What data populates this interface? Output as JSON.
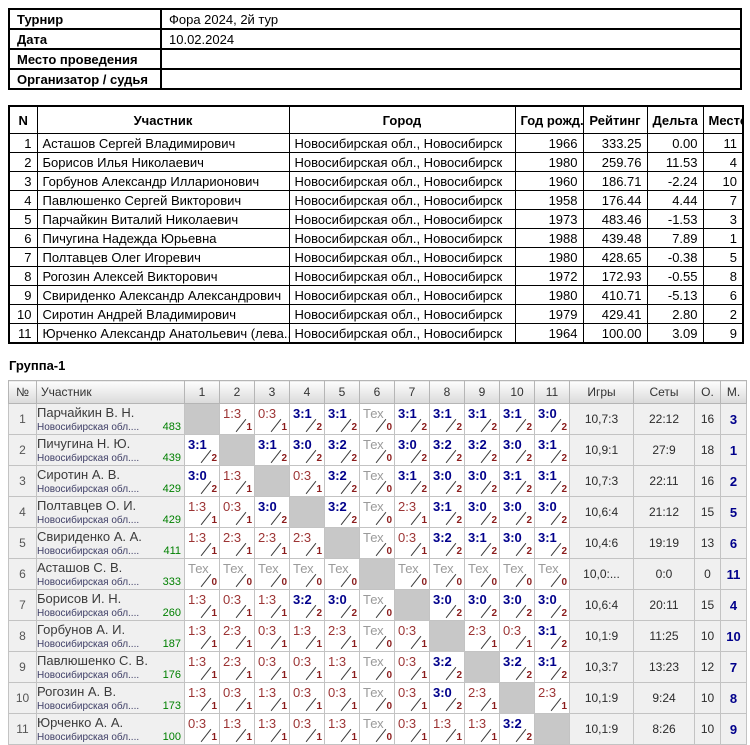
{
  "info_table": {
    "rows": [
      {
        "label": "Турнир",
        "value": "Фора 2024, 2й тур"
      },
      {
        "label": "Дата",
        "value": "10.02.2024"
      },
      {
        "label": "Место проведения",
        "value": ""
      },
      {
        "label": "Организатор / судья",
        "value": ""
      }
    ]
  },
  "participants_table": {
    "headers": [
      "N",
      "Участник",
      "Город",
      "Год рожд.",
      "Рейтинг",
      "Дельта",
      "Место"
    ],
    "rows": [
      [
        "1",
        "Асташов Сергей Владимирович",
        "Новосибирская обл., Новосибирск",
        "1966",
        "333.25",
        "0.00",
        "11"
      ],
      [
        "2",
        "Борисов Илья Николаевич",
        "Новосибирская обл., Новосибирск",
        "1980",
        "259.76",
        "11.53",
        "4"
      ],
      [
        "3",
        "Горбунов Александр Илларионович",
        "Новосибирская обл., Новосибирск",
        "1960",
        "186.71",
        "-2.24",
        "10"
      ],
      [
        "4",
        "Павлюшенко Сергей Викторович",
        "Новосибирская обл., Новосибирск",
        "1958",
        "176.44",
        "4.44",
        "7"
      ],
      [
        "5",
        "Парчайкин Виталий Николаевич",
        "Новосибирская обл., Новосибирск",
        "1973",
        "483.46",
        "-1.53",
        "3"
      ],
      [
        "6",
        "Пичугина Надежда Юрьевна",
        "Новосибирская обл., Новосибирск",
        "1988",
        "439.48",
        "7.89",
        "1"
      ],
      [
        "7",
        "Полтавцев Олег Игоревич",
        "Новосибирская обл., Новосибирск",
        "1980",
        "428.65",
        "-0.38",
        "5"
      ],
      [
        "8",
        "Рогозин Алексей Викторович",
        "Новосибирская обл., Новосибирск",
        "1972",
        "172.93",
        "-0.55",
        "8"
      ],
      [
        "9",
        "Свириденко Александр Александрович",
        "Новосибирская обл., Новосибирск",
        "1980",
        "410.71",
        "-5.13",
        "6"
      ],
      [
        "10",
        "Сиротин Андрей Владимирович",
        "Новосибирская обл., Новосибирск",
        "1979",
        "429.41",
        "2.80",
        "2"
      ],
      [
        "11",
        "Юрченко Александр Анатольевич (лева...",
        "Новосибирская обл., Новосибирск",
        "1964",
        "100.00",
        "3.09",
        "9"
      ]
    ]
  },
  "group": {
    "title": "Группа-1",
    "headers": [
      "№",
      "Участник",
      "1",
      "2",
      "3",
      "4",
      "5",
      "6",
      "7",
      "8",
      "9",
      "10",
      "11",
      "Игры",
      "Сеты",
      "О.",
      "М."
    ],
    "rows": [
      {
        "num": "1",
        "name": "Парчайкин В. Н.",
        "region": "Новосибирская обл....",
        "rating": "483",
        "cells": [
          {
            "t": "d"
          },
          {
            "t": "l",
            "s": "1:3",
            "p": "1"
          },
          {
            "t": "l",
            "s": "0:3",
            "p": "1"
          },
          {
            "t": "w",
            "s": "3:1",
            "p": "2"
          },
          {
            "t": "w",
            "s": "3:1",
            "p": "2"
          },
          {
            "t": "x",
            "s": "Тех",
            "p": "0"
          },
          {
            "t": "w",
            "s": "3:1",
            "p": "2"
          },
          {
            "t": "w",
            "s": "3:1",
            "p": "2"
          },
          {
            "t": "w",
            "s": "3:1",
            "p": "2"
          },
          {
            "t": "w",
            "s": "3:1",
            "p": "2"
          },
          {
            "t": "w",
            "s": "3:0",
            "p": "2"
          }
        ],
        "games": "10,7:3",
        "sets": "22:12",
        "o": "16",
        "m": "3"
      },
      {
        "num": "2",
        "name": "Пичугина Н. Ю.",
        "region": "Новосибирская обл....",
        "rating": "439",
        "cells": [
          {
            "t": "w",
            "s": "3:1",
            "p": "2"
          },
          {
            "t": "d"
          },
          {
            "t": "w",
            "s": "3:1",
            "p": "2"
          },
          {
            "t": "w",
            "s": "3:0",
            "p": "2"
          },
          {
            "t": "w",
            "s": "3:2",
            "p": "2"
          },
          {
            "t": "x",
            "s": "Тех",
            "p": "0"
          },
          {
            "t": "w",
            "s": "3:0",
            "p": "2"
          },
          {
            "t": "w",
            "s": "3:2",
            "p": "2"
          },
          {
            "t": "w",
            "s": "3:2",
            "p": "2"
          },
          {
            "t": "w",
            "s": "3:0",
            "p": "2"
          },
          {
            "t": "w",
            "s": "3:1",
            "p": "2"
          }
        ],
        "games": "10,9:1",
        "sets": "27:9",
        "o": "18",
        "m": "1"
      },
      {
        "num": "3",
        "name": "Сиротин А. В.",
        "region": "Новосибирская обл....",
        "rating": "429",
        "cells": [
          {
            "t": "w",
            "s": "3:0",
            "p": "2"
          },
          {
            "t": "l",
            "s": "1:3",
            "p": "1"
          },
          {
            "t": "d"
          },
          {
            "t": "l",
            "s": "0:3",
            "p": "1"
          },
          {
            "t": "w",
            "s": "3:2",
            "p": "2"
          },
          {
            "t": "x",
            "s": "Тех",
            "p": "0"
          },
          {
            "t": "w",
            "s": "3:1",
            "p": "2"
          },
          {
            "t": "w",
            "s": "3:0",
            "p": "2"
          },
          {
            "t": "w",
            "s": "3:0",
            "p": "2"
          },
          {
            "t": "w",
            "s": "3:1",
            "p": "2"
          },
          {
            "t": "w",
            "s": "3:1",
            "p": "2"
          }
        ],
        "games": "10,7:3",
        "sets": "22:11",
        "o": "16",
        "m": "2"
      },
      {
        "num": "4",
        "name": "Полтавцев О. И.",
        "region": "Новосибирская обл....",
        "rating": "429",
        "cells": [
          {
            "t": "l",
            "s": "1:3",
            "p": "1"
          },
          {
            "t": "l",
            "s": "0:3",
            "p": "1"
          },
          {
            "t": "w",
            "s": "3:0",
            "p": "2"
          },
          {
            "t": "d"
          },
          {
            "t": "w",
            "s": "3:2",
            "p": "2"
          },
          {
            "t": "x",
            "s": "Тех",
            "p": "0"
          },
          {
            "t": "l",
            "s": "2:3",
            "p": "1"
          },
          {
            "t": "w",
            "s": "3:1",
            "p": "2"
          },
          {
            "t": "w",
            "s": "3:0",
            "p": "2"
          },
          {
            "t": "w",
            "s": "3:0",
            "p": "2"
          },
          {
            "t": "w",
            "s": "3:0",
            "p": "2"
          }
        ],
        "games": "10,6:4",
        "sets": "21:12",
        "o": "15",
        "m": "5"
      },
      {
        "num": "5",
        "name": "Свириденко А. А.",
        "region": "Новосибирская обл....",
        "rating": "411",
        "cells": [
          {
            "t": "l",
            "s": "1:3",
            "p": "1"
          },
          {
            "t": "l",
            "s": "2:3",
            "p": "1"
          },
          {
            "t": "l",
            "s": "2:3",
            "p": "1"
          },
          {
            "t": "l",
            "s": "2:3",
            "p": "1"
          },
          {
            "t": "d"
          },
          {
            "t": "x",
            "s": "Тех",
            "p": "0"
          },
          {
            "t": "l",
            "s": "0:3",
            "p": "1"
          },
          {
            "t": "w",
            "s": "3:2",
            "p": "2"
          },
          {
            "t": "w",
            "s": "3:1",
            "p": "2"
          },
          {
            "t": "w",
            "s": "3:0",
            "p": "2"
          },
          {
            "t": "w",
            "s": "3:1",
            "p": "2"
          }
        ],
        "games": "10,4:6",
        "sets": "19:19",
        "o": "13",
        "m": "6"
      },
      {
        "num": "6",
        "name": "Асташов С. В.",
        "region": "Новосибирская обл....",
        "rating": "333",
        "cells": [
          {
            "t": "x",
            "s": "Тех",
            "p": "0"
          },
          {
            "t": "x",
            "s": "Тех",
            "p": "0"
          },
          {
            "t": "x",
            "s": "Тех",
            "p": "0"
          },
          {
            "t": "x",
            "s": "Тех",
            "p": "0"
          },
          {
            "t": "x",
            "s": "Тех",
            "p": "0"
          },
          {
            "t": "d"
          },
          {
            "t": "x",
            "s": "Тех",
            "p": "0"
          },
          {
            "t": "x",
            "s": "Тех",
            "p": "0"
          },
          {
            "t": "x",
            "s": "Тех",
            "p": "0"
          },
          {
            "t": "x",
            "s": "Тех",
            "p": "0"
          },
          {
            "t": "x",
            "s": "Тех",
            "p": "0"
          }
        ],
        "games": "10,0:...",
        "sets": "0:0",
        "o": "0",
        "m": "11"
      },
      {
        "num": "7",
        "name": "Борисов И. Н.",
        "region": "Новосибирская обл....",
        "rating": "260",
        "cells": [
          {
            "t": "l",
            "s": "1:3",
            "p": "1"
          },
          {
            "t": "l",
            "s": "0:3",
            "p": "1"
          },
          {
            "t": "l",
            "s": "1:3",
            "p": "1"
          },
          {
            "t": "w",
            "s": "3:2",
            "p": "2"
          },
          {
            "t": "w",
            "s": "3:0",
            "p": "2"
          },
          {
            "t": "x",
            "s": "Тех",
            "p": "0"
          },
          {
            "t": "d"
          },
          {
            "t": "w",
            "s": "3:0",
            "p": "2"
          },
          {
            "t": "w",
            "s": "3:0",
            "p": "2"
          },
          {
            "t": "w",
            "s": "3:0",
            "p": "2"
          },
          {
            "t": "w",
            "s": "3:0",
            "p": "2"
          }
        ],
        "games": "10,6:4",
        "sets": "20:11",
        "o": "15",
        "m": "4"
      },
      {
        "num": "8",
        "name": "Горбунов А. И.",
        "region": "Новосибирская обл....",
        "rating": "187",
        "cells": [
          {
            "t": "l",
            "s": "1:3",
            "p": "1"
          },
          {
            "t": "l",
            "s": "2:3",
            "p": "1"
          },
          {
            "t": "l",
            "s": "0:3",
            "p": "1"
          },
          {
            "t": "l",
            "s": "1:3",
            "p": "1"
          },
          {
            "t": "l",
            "s": "2:3",
            "p": "1"
          },
          {
            "t": "x",
            "s": "Тех",
            "p": "0"
          },
          {
            "t": "l",
            "s": "0:3",
            "p": "1"
          },
          {
            "t": "d"
          },
          {
            "t": "l",
            "s": "2:3",
            "p": "1"
          },
          {
            "t": "l",
            "s": "0:3",
            "p": "1"
          },
          {
            "t": "w",
            "s": "3:1",
            "p": "2"
          }
        ],
        "games": "10,1:9",
        "sets": "11:25",
        "o": "10",
        "m": "10"
      },
      {
        "num": "9",
        "name": "Павлюшенко С. В.",
        "region": "Новосибирская обл....",
        "rating": "176",
        "cells": [
          {
            "t": "l",
            "s": "1:3",
            "p": "1"
          },
          {
            "t": "l",
            "s": "2:3",
            "p": "1"
          },
          {
            "t": "l",
            "s": "0:3",
            "p": "1"
          },
          {
            "t": "l",
            "s": "0:3",
            "p": "1"
          },
          {
            "t": "l",
            "s": "1:3",
            "p": "1"
          },
          {
            "t": "x",
            "s": "Тех",
            "p": "0"
          },
          {
            "t": "l",
            "s": "0:3",
            "p": "1"
          },
          {
            "t": "w",
            "s": "3:2",
            "p": "2"
          },
          {
            "t": "d"
          },
          {
            "t": "w",
            "s": "3:2",
            "p": "2"
          },
          {
            "t": "w",
            "s": "3:1",
            "p": "2"
          }
        ],
        "games": "10,3:7",
        "sets": "13:23",
        "o": "12",
        "m": "7"
      },
      {
        "num": "10",
        "name": "Рогозин А. В.",
        "region": "Новосибирская обл....",
        "rating": "173",
        "cells": [
          {
            "t": "l",
            "s": "1:3",
            "p": "1"
          },
          {
            "t": "l",
            "s": "0:3",
            "p": "1"
          },
          {
            "t": "l",
            "s": "1:3",
            "p": "1"
          },
          {
            "t": "l",
            "s": "0:3",
            "p": "1"
          },
          {
            "t": "l",
            "s": "0:3",
            "p": "1"
          },
          {
            "t": "x",
            "s": "Тех",
            "p": "0"
          },
          {
            "t": "l",
            "s": "0:3",
            "p": "1"
          },
          {
            "t": "w",
            "s": "3:0",
            "p": "2"
          },
          {
            "t": "l",
            "s": "2:3",
            "p": "1"
          },
          {
            "t": "d"
          },
          {
            "t": "l",
            "s": "2:3",
            "p": "1"
          }
        ],
        "games": "10,1:9",
        "sets": "9:24",
        "o": "10",
        "m": "8"
      },
      {
        "num": "11",
        "name": "Юрченко А. А.",
        "region": "Новосибирская обл....",
        "rating": "100",
        "cells": [
          {
            "t": "l",
            "s": "0:3",
            "p": "1"
          },
          {
            "t": "l",
            "s": "1:3",
            "p": "1"
          },
          {
            "t": "l",
            "s": "1:3",
            "p": "1"
          },
          {
            "t": "l",
            "s": "0:3",
            "p": "1"
          },
          {
            "t": "l",
            "s": "1:3",
            "p": "1"
          },
          {
            "t": "x",
            "s": "Тех",
            "p": "0"
          },
          {
            "t": "l",
            "s": "0:3",
            "p": "1"
          },
          {
            "t": "l",
            "s": "1:3",
            "p": "1"
          },
          {
            "t": "l",
            "s": "1:3",
            "p": "1"
          },
          {
            "t": "w",
            "s": "3:2",
            "p": "2"
          },
          {
            "t": "d"
          }
        ],
        "games": "10,1:9",
        "sets": "8:26",
        "o": "10",
        "m": "9"
      }
    ]
  },
  "colors": {
    "win_score": "#00008b",
    "loss_score": "#9c3434",
    "tech_score": "#9a9a9a",
    "points": "#8b1c1c",
    "rating": "#008000",
    "place": "#00008b",
    "diagonal_fill": "#c8c8c8"
  }
}
